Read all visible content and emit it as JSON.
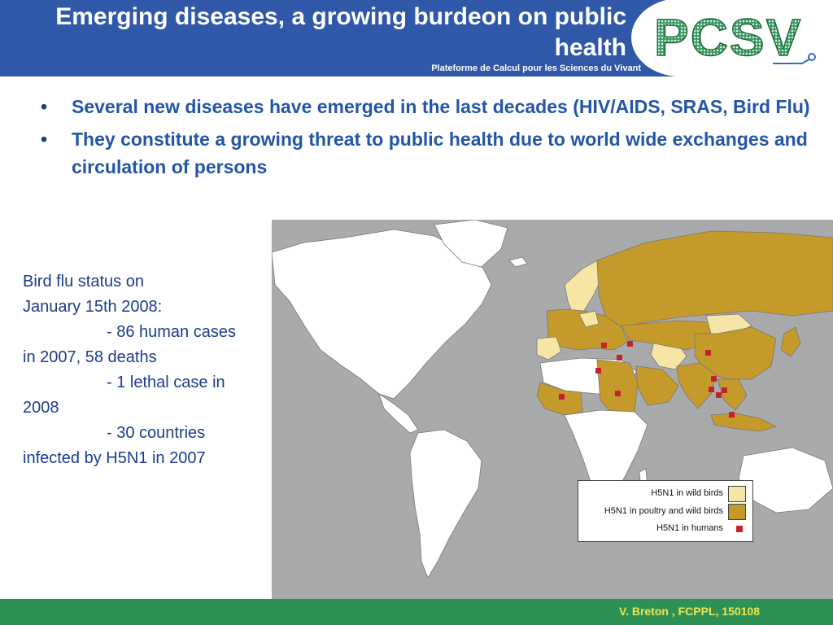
{
  "header": {
    "title": "Emerging diseases, a growing burdeon on public health",
    "subtitle": "Plateforme de Calcul pour les Sciences du Vivant",
    "logo_text": "PCSV"
  },
  "bullets": [
    "Several new diseases have emerged in the last decades (HIV/AIDS, SRAS, Bird Flu)",
    "They constitute a growing threat to public health due to world wide exchanges and circulation of persons"
  ],
  "status_text": {
    "line1": "Bird flu status on",
    "line2": "January 15th 2008:",
    "line3": "- 86 human cases",
    "line4": "in 2007, 58 deaths",
    "line5": "- 1 lethal case in",
    "line6": "2008",
    "line7": "- 30 countries",
    "line8": "infected by H5N1 in 2007"
  },
  "legend": {
    "wild_birds": "H5N1 in wild birds",
    "poultry_wild": "H5N1 in poultry and wild birds",
    "humans": "H5N1 in humans"
  },
  "colors": {
    "header_blue": "#2f58a8",
    "footer_green": "#2e9257",
    "poultry_fill": "#c49a2a",
    "wild_fill": "#f5e6a6",
    "human_marker": "#c4222c",
    "ocean": "#a9aaac",
    "logo_green": "#2e9257",
    "logo_blue": "#3a6bb8"
  },
  "footer": {
    "credit": "V. Breton , FCPPL, 150108"
  }
}
